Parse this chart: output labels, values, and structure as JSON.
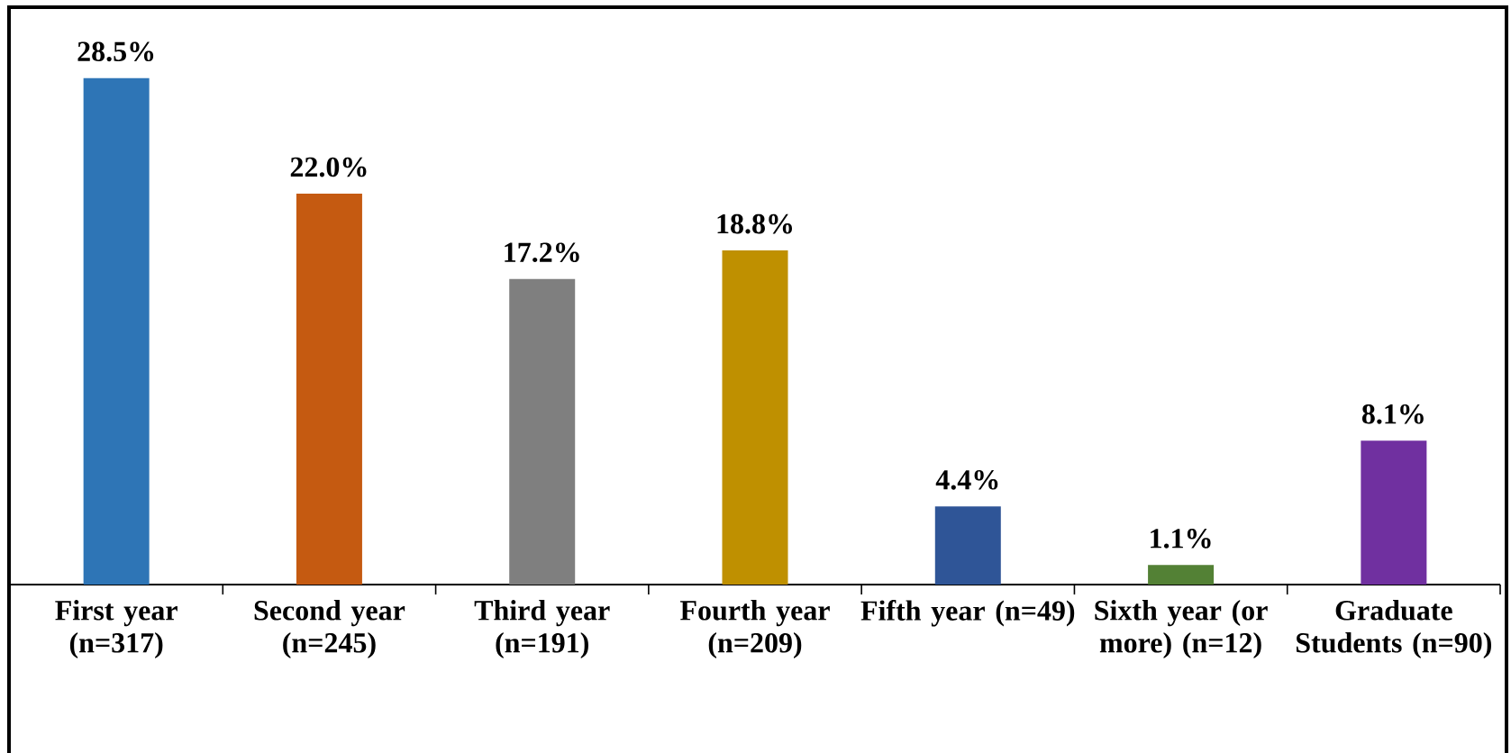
{
  "chart_data": {
    "type": "bar",
    "categories": [
      "First year (n=317)",
      "Second year (n=245)",
      "Third year (n=191)",
      "Fourth year (n=209)",
      "Fifth year (n=49)",
      "Sixth year (or more) (n=12)",
      "Graduate Students (n=90)"
    ],
    "values": [
      28.5,
      22.0,
      17.2,
      18.8,
      4.4,
      1.1,
      8.1
    ],
    "colors": [
      "#2e75b6",
      "#c55a11",
      "#7f7f7f",
      "#bf9000",
      "#2f5597",
      "#538135",
      "#7030a0"
    ],
    "value_labels": [
      "28.5%",
      "22.0%",
      "17.2%",
      "18.8%",
      "4.4%",
      "1.1%",
      "8.1%"
    ]
  }
}
